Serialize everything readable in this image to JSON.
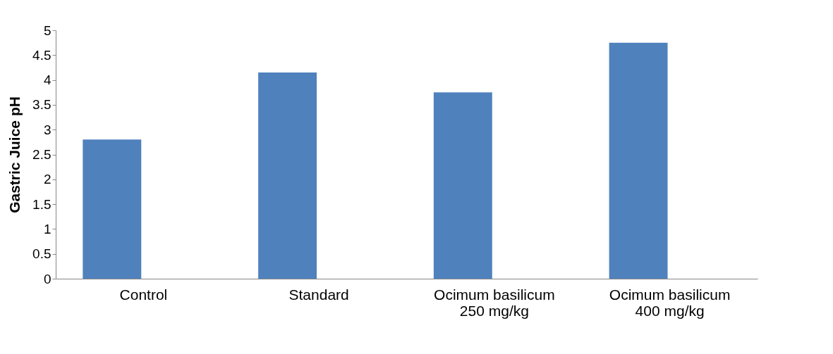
{
  "chart_data": {
    "type": "bar",
    "ylabel": "Gastric Juice pH",
    "categories": [
      "Control",
      "Standard",
      "Ocimum basilicum\n250 mg/kg",
      "Ocimum basilicum\n400 mg/kg"
    ],
    "values": [
      2.8,
      4.15,
      3.75,
      4.75
    ],
    "color": "#4f81bd",
    "ylim": [
      0,
      5
    ],
    "yticks": [
      0,
      0.5,
      1,
      1.5,
      2,
      2.5,
      3,
      3.5,
      4,
      4.5,
      5
    ],
    "grid": false
  }
}
